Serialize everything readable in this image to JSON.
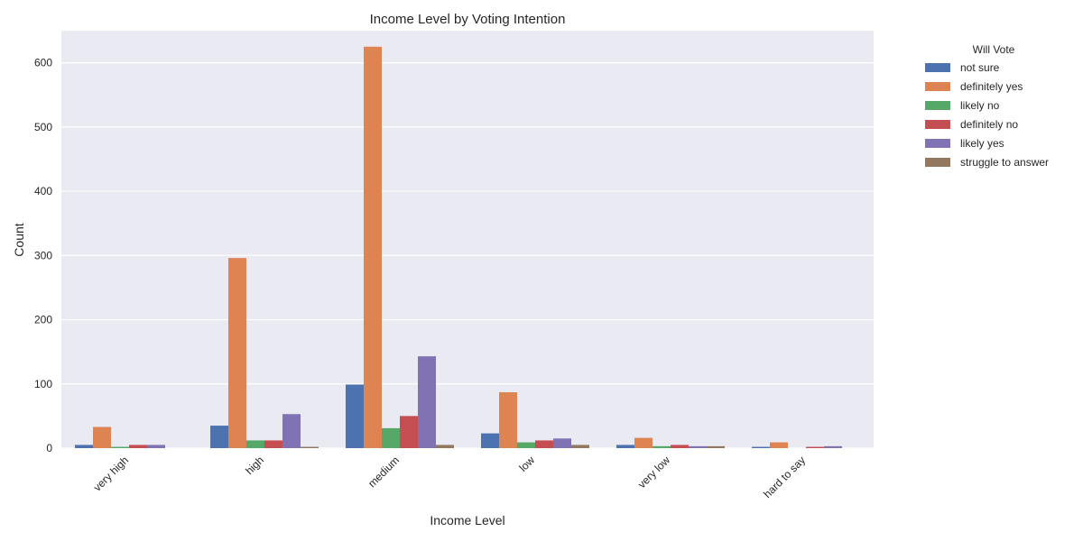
{
  "chart_data": {
    "type": "bar",
    "title": "Income Level by Voting Intention",
    "xlabel": "Income Level",
    "ylabel": "Count",
    "categories": [
      "very high",
      "high",
      "medium",
      "low",
      "very low",
      "hard to say"
    ],
    "ylim": [
      0,
      650
    ],
    "yticks": [
      0,
      100,
      200,
      300,
      400,
      500,
      600
    ],
    "grid": true,
    "legend": {
      "title": "Will Vote",
      "placement": "outside-right"
    },
    "series": [
      {
        "name": "not sure",
        "color": "#4c72b0",
        "values": [
          5,
          35,
          99,
          23,
          5,
          2
        ]
      },
      {
        "name": "definitely yes",
        "color": "#dd8452",
        "values": [
          33,
          296,
          625,
          87,
          16,
          9
        ]
      },
      {
        "name": "likely no",
        "color": "#55a868",
        "values": [
          2,
          12,
          31,
          9,
          3,
          0
        ]
      },
      {
        "name": "definitely no",
        "color": "#c44e52",
        "values": [
          5,
          12,
          50,
          12,
          5,
          2
        ]
      },
      {
        "name": "likely yes",
        "color": "#8172b3",
        "values": [
          5,
          53,
          143,
          15,
          3,
          3
        ]
      },
      {
        "name": "struggle to answer",
        "color": "#937860",
        "values": [
          0,
          2,
          5,
          5,
          3,
          0
        ]
      }
    ]
  }
}
